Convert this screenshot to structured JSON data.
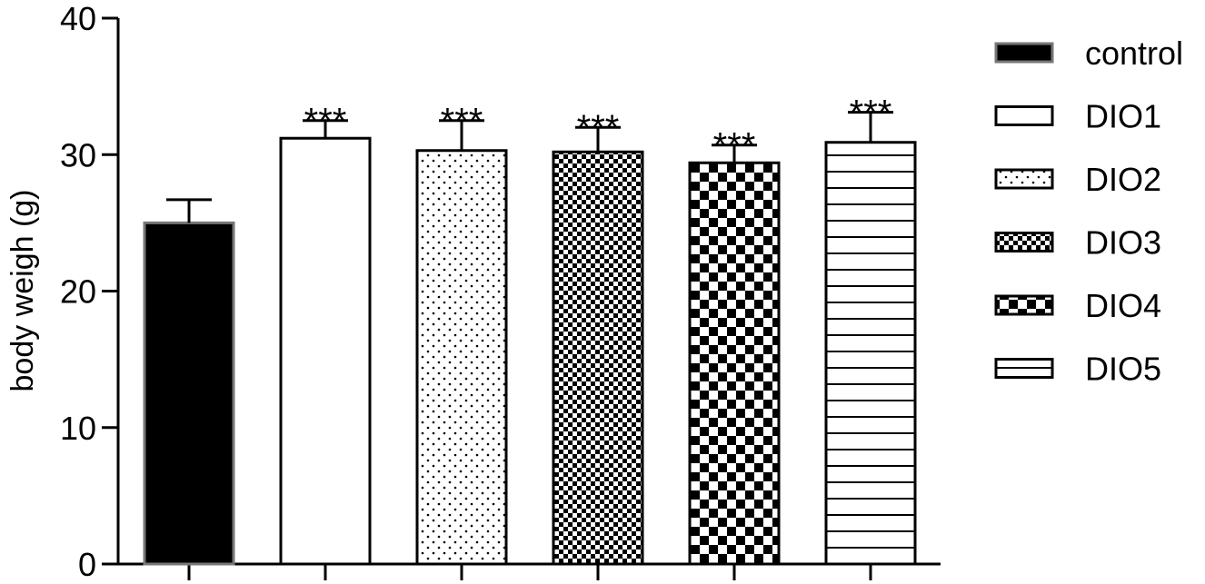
{
  "chart_data": {
    "type": "bar",
    "title": "",
    "xlabel": "",
    "ylabel": "body weigh (g)",
    "ylim": [
      0,
      40
    ],
    "yticks": [
      "0",
      "10",
      "20",
      "30",
      "40"
    ],
    "grid": false,
    "legend_position": "right",
    "bars": [
      {
        "name": "control",
        "value": 25.0,
        "error": 1.7,
        "pattern": "solid-black",
        "annotation": ""
      },
      {
        "name": "DIO1",
        "value": 31.2,
        "error": 1.3,
        "pattern": "white",
        "annotation": "***"
      },
      {
        "name": "DIO2",
        "value": 30.3,
        "error": 2.2,
        "pattern": "dots",
        "annotation": "***"
      },
      {
        "name": "DIO3",
        "value": 30.2,
        "error": 1.8,
        "pattern": "fine-checker",
        "annotation": "***"
      },
      {
        "name": "DIO4",
        "value": 29.4,
        "error": 1.3,
        "pattern": "coarse-checker",
        "annotation": "***"
      },
      {
        "name": "DIO5",
        "value": 30.9,
        "error": 2.2,
        "pattern": "horizontal-lines",
        "annotation": "***"
      }
    ]
  }
}
